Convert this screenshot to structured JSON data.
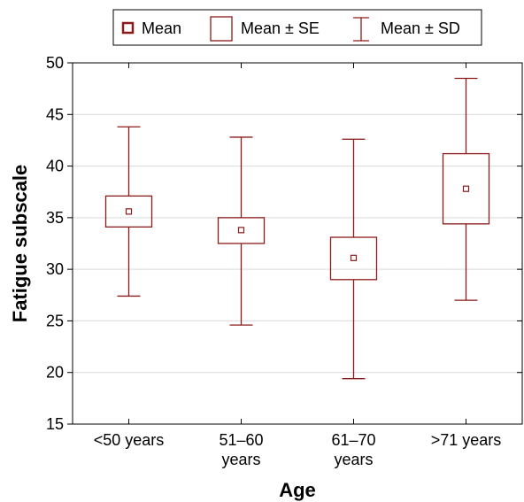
{
  "chart_data": {
    "type": "boxplot",
    "xlabel": "Age",
    "ylabel": "Fatigue subscale",
    "ylim": [
      15,
      50
    ],
    "yticks": [
      "15",
      "20",
      "25",
      "30",
      "35",
      "40",
      "45",
      "50"
    ],
    "grid": true,
    "legend_position": "top",
    "legend": [
      {
        "label": "Mean",
        "symbol": "small-square"
      },
      {
        "label": "Mean ± SE",
        "symbol": "box"
      },
      {
        "label": "Mean ± SD",
        "symbol": "whisker"
      }
    ],
    "categories": [
      {
        "label_lines": [
          "<50 years"
        ],
        "mean": 35.6,
        "se_low": 34.1,
        "se_high": 37.1,
        "sd_low": 27.4,
        "sd_high": 43.8
      },
      {
        "label_lines": [
          "51–60",
          "years"
        ],
        "mean": 33.8,
        "se_low": 32.5,
        "se_high": 35.0,
        "sd_low": 24.6,
        "sd_high": 42.8
      },
      {
        "label_lines": [
          "61–70",
          "years"
        ],
        "mean": 31.1,
        "se_low": 29.0,
        "se_high": 33.1,
        "sd_low": 19.4,
        "sd_high": 42.6
      },
      {
        "label_lines": [
          ">71 years"
        ],
        "mean": 37.8,
        "se_low": 34.4,
        "se_high": 41.2,
        "sd_low": 27.0,
        "sd_high": 48.5
      }
    ],
    "colors": {
      "series": "#8b1a1a",
      "grid": "#d9d9d9",
      "axis": "#000000"
    }
  }
}
